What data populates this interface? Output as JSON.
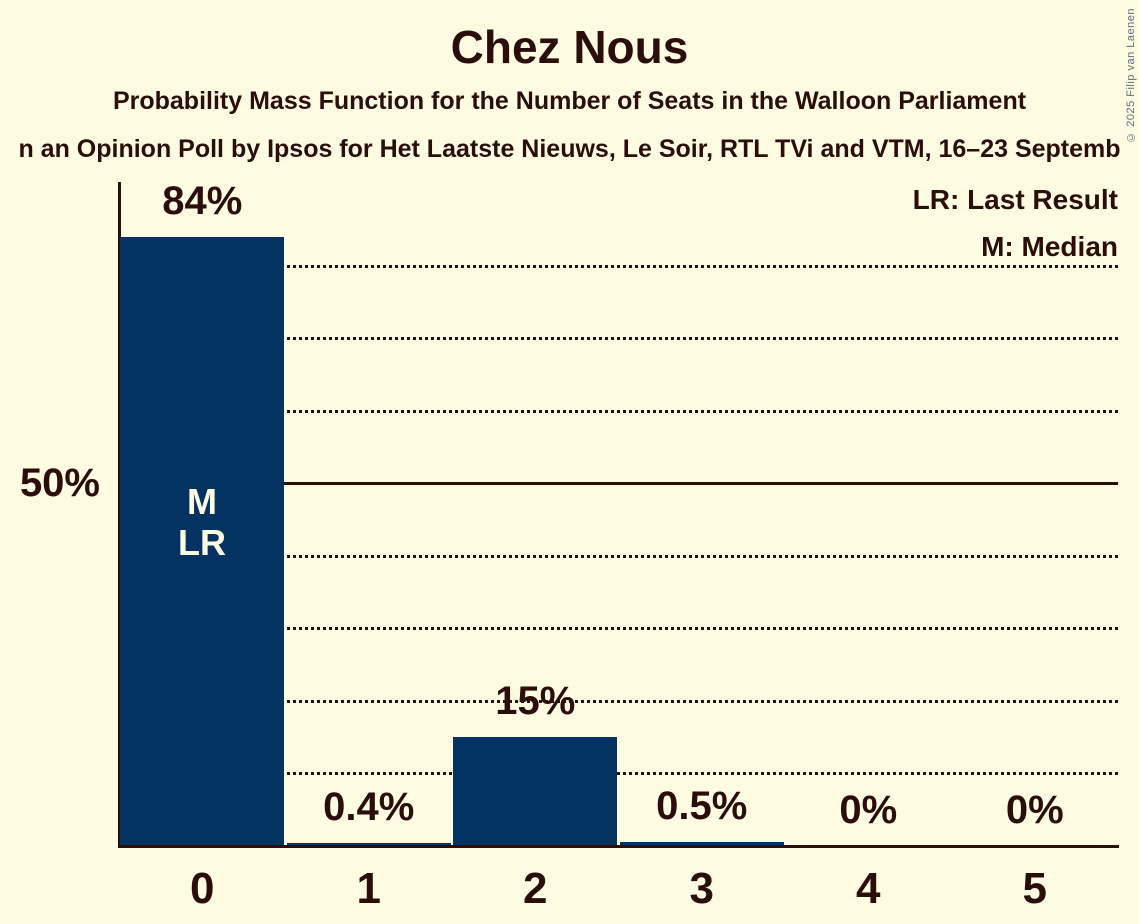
{
  "title": "Chez Nous",
  "subtitle1": "Probability Mass Function for the Number of Seats in the Walloon Parliament",
  "subtitle2": "n an Opinion Poll by Ipsos for Het Laatste Nieuws, Le Soir, RTL TVi and VTM, 16–23 Septemb",
  "copyright": "© 2025 Filip van Laenen",
  "legend": {
    "last_result": "LR: Last Result",
    "median": "M: Median"
  },
  "y_axis": {
    "reference_label": "50%"
  },
  "annotations": {
    "median": "M",
    "last_result": "LR"
  },
  "colors": {
    "background": "#FDFCE3",
    "bar": "#053361",
    "text": "#2B0D0A",
    "bar_label": "#FDFCE3",
    "copyright": "#5E6F7B"
  },
  "chart_data": {
    "type": "bar",
    "title": "Chez Nous",
    "categories": [
      "0",
      "1",
      "2",
      "3",
      "4",
      "5"
    ],
    "values": [
      84,
      0.4,
      15,
      0.5,
      0,
      0
    ],
    "value_labels": [
      "84%",
      "0.4%",
      "15%",
      "0.5%",
      "0%",
      "0%"
    ],
    "ylim": [
      0,
      92
    ],
    "gridlines": {
      "dotted_percents": [
        10,
        20,
        30,
        40,
        60,
        70,
        80
      ],
      "solid_percent": 50
    },
    "y_reference": {
      "percent": 50,
      "label": "50%"
    },
    "median_seat": "0",
    "last_result_seat": "0",
    "legend_position": "top-right",
    "bar_annotation_seat": "0"
  }
}
